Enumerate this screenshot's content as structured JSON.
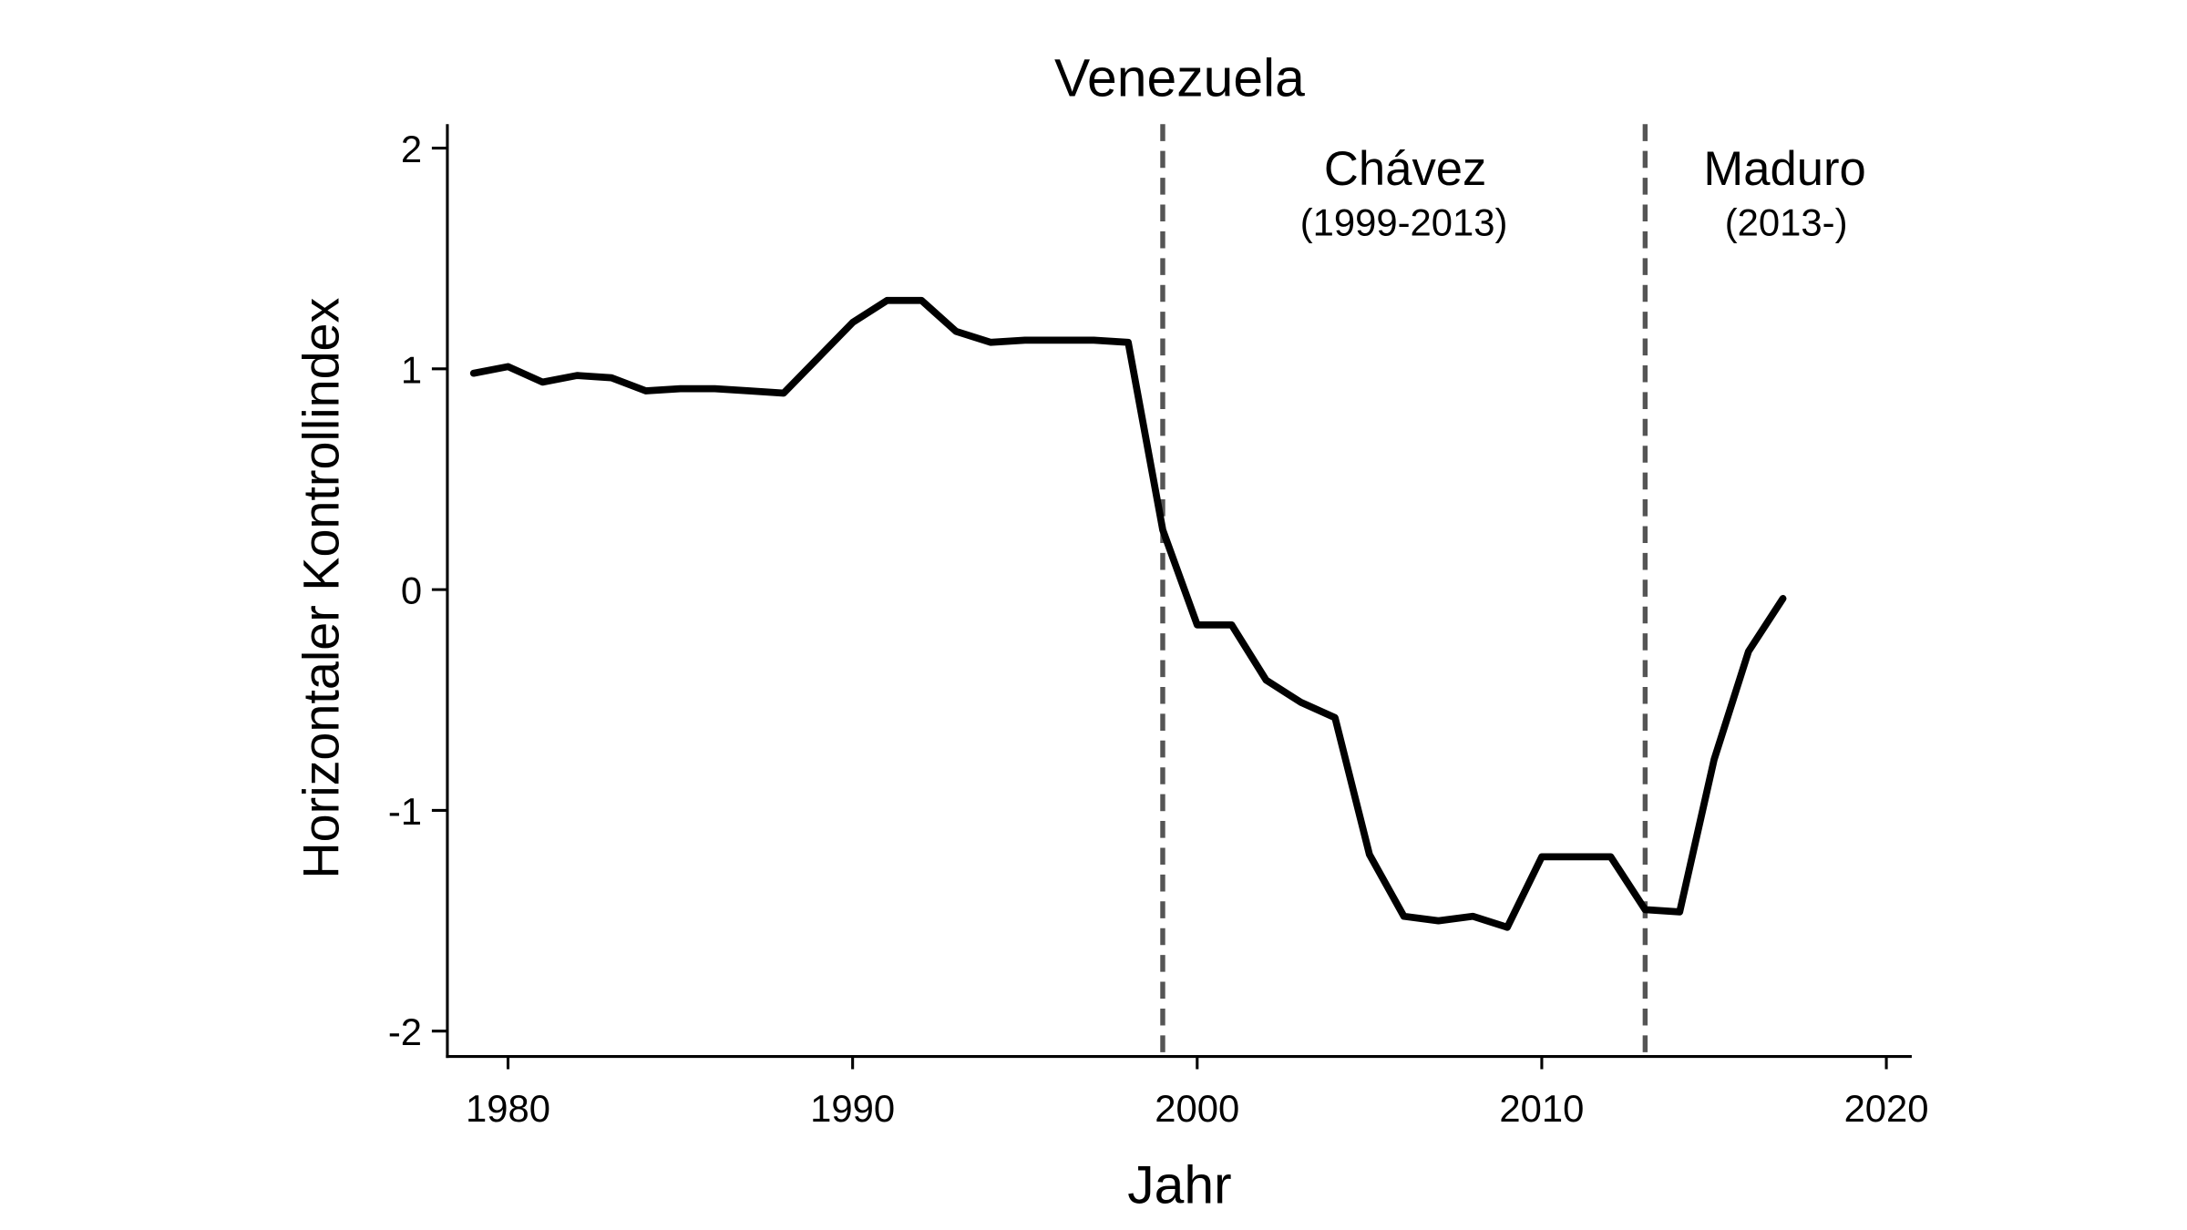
{
  "chart_data": {
    "type": "line",
    "title": "Venezuela",
    "xlabel": "Jahr",
    "ylabel": "Horizontaler Kontrollindex",
    "xlim": [
      1978.3,
      2020.7
    ],
    "ylim": [
      -2.1,
      2.1
    ],
    "xticks": [
      1980,
      1990,
      2000,
      2010,
      2020
    ],
    "yticks": [
      2,
      1,
      0,
      -1,
      -2
    ],
    "grid": false,
    "line_color": "#000000",
    "x": [
      1979,
      1980,
      1981,
      1982,
      1983,
      1984,
      1985,
      1986,
      1987,
      1988,
      1989,
      1990,
      1991,
      1992,
      1993,
      1994,
      1995,
      1996,
      1997,
      1998,
      1999,
      2000,
      2001,
      2002,
      2003,
      2004,
      2005,
      2006,
      2007,
      2008,
      2009,
      2010,
      2011,
      2012,
      2013,
      2014,
      2015,
      2016,
      2017
    ],
    "y": [
      0.98,
      1.01,
      0.94,
      0.97,
      0.96,
      0.9,
      0.91,
      0.91,
      0.9,
      0.89,
      1.05,
      1.21,
      1.31,
      1.31,
      1.17,
      1.12,
      1.13,
      1.13,
      1.13,
      1.12,
      0.27,
      -0.16,
      -0.16,
      -0.41,
      -0.51,
      -0.58,
      -1.2,
      -1.48,
      -1.5,
      -1.48,
      -1.53,
      -1.21,
      -1.21,
      -1.21,
      -1.45,
      -1.46,
      -0.77,
      -0.28,
      -0.04
    ],
    "reference_lines": [
      {
        "x": 1999,
        "style": "dashed",
        "color": "#555555"
      },
      {
        "x": 2013,
        "style": "dashed",
        "color": "#555555"
      }
    ],
    "annotations": [
      {
        "label": "Chávez",
        "sub": "(1999-2013)"
      },
      {
        "label": "Maduro",
        "sub": "(2013-)"
      }
    ]
  }
}
